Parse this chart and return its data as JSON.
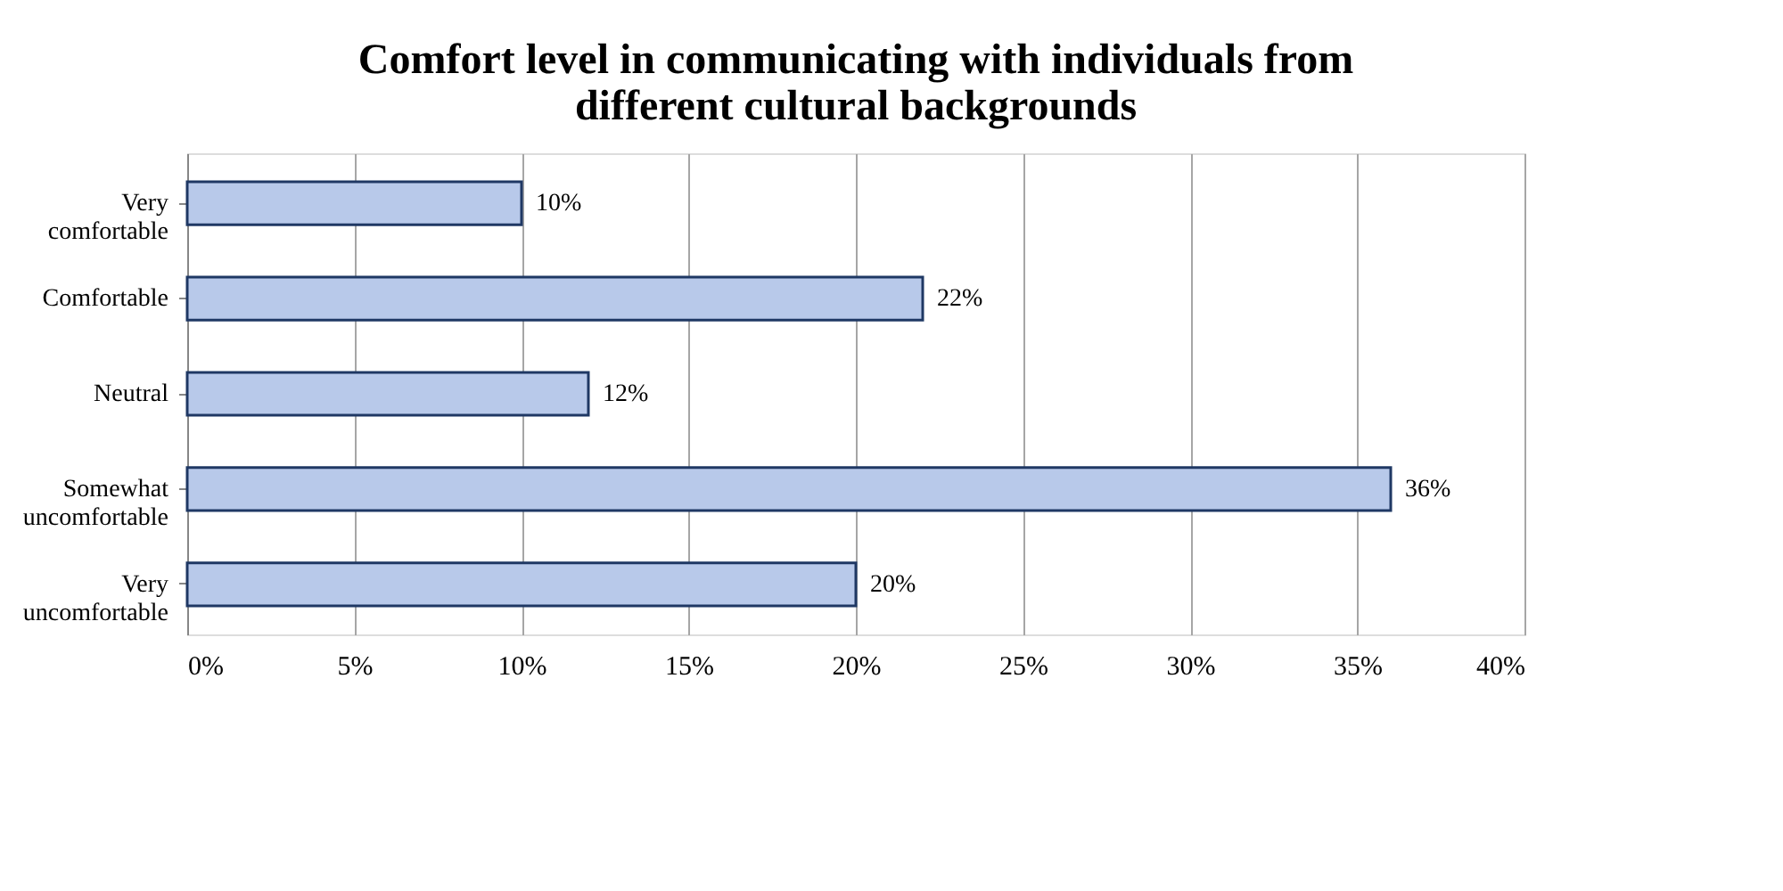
{
  "chart_data": {
    "type": "bar",
    "orientation": "horizontal",
    "title": "Comfort level in communicating with individuals from different cultural backgrounds",
    "categories": [
      "Very comfortable",
      "Comfortable",
      "Neutral",
      "Somewhat uncomfortable",
      "Very uncomfortable"
    ],
    "values": [
      10,
      22,
      12,
      36,
      20
    ],
    "value_labels": [
      "10%",
      "22%",
      "12%",
      "36%",
      "20%"
    ],
    "color": "#b8c9ea",
    "xlim": [
      0,
      40
    ],
    "xticks": [
      {
        "value": 0,
        "label": "0%"
      },
      {
        "value": 5,
        "label": "5%"
      },
      {
        "value": 10,
        "label": "10%"
      },
      {
        "value": 15,
        "label": "15%"
      },
      {
        "value": 20,
        "label": "20%"
      },
      {
        "value": 25,
        "label": "25%"
      },
      {
        "value": 30,
        "label": "30%"
      },
      {
        "value": 35,
        "label": "35%"
      },
      {
        "value": 40,
        "label": "40%"
      }
    ],
    "grid": "x"
  }
}
